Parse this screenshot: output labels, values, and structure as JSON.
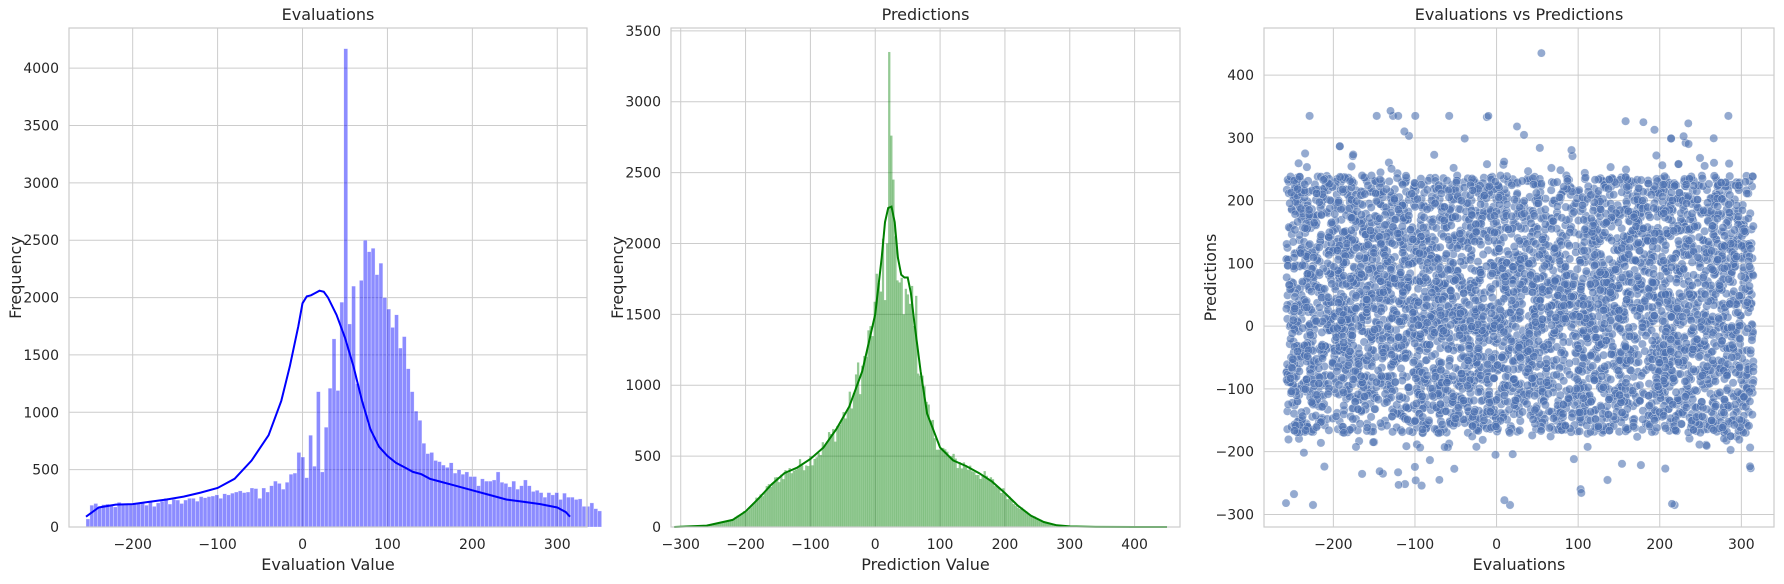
{
  "chart_data": [
    {
      "type": "histogram",
      "title": "Evaluations",
      "xlabel": "Evaluation Value",
      "ylabel": "Frequency",
      "xlim": [
        -275,
        335
      ],
      "ylim": [
        0,
        4350
      ],
      "xticks": [
        -200,
        -100,
        0,
        100,
        200,
        300
      ],
      "yticks": [
        0,
        500,
        1000,
        1500,
        2000,
        2500,
        3000,
        3500,
        4000
      ],
      "grid": true,
      "color": "#0000ff",
      "bins": {
        "start": -255,
        "width": 4.6
      },
      "counts": [
        70,
        190,
        205,
        175,
        195,
        200,
        190,
        175,
        215,
        205,
        200,
        195,
        210,
        205,
        215,
        190,
        220,
        180,
        210,
        225,
        250,
        200,
        240,
        235,
        205,
        235,
        250,
        250,
        225,
        265,
        255,
        265,
        270,
        280,
        250,
        290,
        280,
        295,
        305,
        315,
        300,
        305,
        340,
        335,
        250,
        340,
        305,
        360,
        400,
        380,
        330,
        390,
        460,
        470,
        650,
        610,
        430,
        800,
        530,
        1180,
        480,
        870,
        1210,
        1640,
        1190,
        1960,
        4170,
        1770,
        2100,
        1250,
        2150,
        2500,
        2400,
        2430,
        2200,
        2300,
        2000,
        1900,
        1740,
        1850,
        1560,
        1660,
        1380,
        1180,
        1010,
        930,
        730,
        640,
        650,
        580,
        570,
        540,
        520,
        560,
        470,
        500,
        460,
        480,
        440,
        440,
        360,
        420,
        400,
        400,
        410,
        480,
        390,
        380,
        350,
        400,
        330,
        360,
        410,
        360,
        310,
        320,
        300,
        260,
        300,
        280,
        300,
        240,
        295,
        260,
        260,
        240,
        245,
        180,
        180,
        210,
        160,
        140
      ],
      "kde": {
        "x": [
          -255,
          -240,
          -220,
          -200,
          -180,
          -160,
          -140,
          -120,
          -100,
          -80,
          -60,
          -40,
          -25,
          -15,
          -5,
          0,
          5,
          10,
          15,
          20,
          25,
          30,
          40,
          50,
          60,
          70,
          80,
          90,
          100,
          110,
          120,
          130,
          140,
          150,
          160,
          180,
          200,
          220,
          240,
          260,
          280,
          300,
          310,
          315
        ],
        "y": [
          90,
          170,
          195,
          200,
          220,
          240,
          265,
          300,
          340,
          420,
          580,
          800,
          1100,
          1400,
          1750,
          1950,
          2010,
          2020,
          2040,
          2060,
          2050,
          2000,
          1850,
          1650,
          1400,
          1100,
          850,
          700,
          620,
          560,
          520,
          480,
          460,
          420,
          400,
          360,
          320,
          280,
          240,
          220,
          200,
          170,
          130,
          90
        ]
      }
    },
    {
      "type": "histogram",
      "title": "Predictions",
      "xlabel": "Prediction Value",
      "ylabel": "Frequency",
      "xlim": [
        -315,
        470
      ],
      "ylim": [
        0,
        3520
      ],
      "xticks": [
        -300,
        -200,
        -100,
        0,
        100,
        200,
        300,
        400
      ],
      "yticks": [
        0,
        500,
        1000,
        1500,
        2000,
        2500,
        3000,
        3500
      ],
      "grid": true,
      "color": "#008000",
      "bins": {
        "start": -165,
        "width": 3.2
      },
      "spikes": [
        {
          "x": 22,
          "value": 3350
        },
        {
          "x": 25,
          "value": 2760
        },
        {
          "x": 28,
          "value": 2450
        },
        {
          "x": 18,
          "value": 2000
        },
        {
          "x": 31,
          "value": 2050
        },
        {
          "x": 50,
          "value": 1640
        },
        {
          "x": 56,
          "value": 1700
        },
        {
          "x": 62,
          "value": 1630
        },
        {
          "x": 44,
          "value": 1500
        },
        {
          "x": -25,
          "value": 1160
        },
        {
          "x": 10,
          "value": 1660
        },
        {
          "x": 14,
          "value": 1600
        }
      ],
      "kde": {
        "x": [
          -310,
          -260,
          -220,
          -200,
          -180,
          -160,
          -140,
          -120,
          -100,
          -80,
          -60,
          -40,
          -20,
          0,
          10,
          15,
          20,
          25,
          30,
          35,
          40,
          45,
          50,
          55,
          60,
          70,
          80,
          100,
          120,
          140,
          160,
          180,
          200,
          220,
          240,
          260,
          280,
          300,
          340,
          400,
          450
        ],
        "y": [
          0,
          10,
          50,
          110,
          200,
          300,
          380,
          420,
          480,
          560,
          690,
          850,
          1100,
          1500,
          1900,
          2150,
          2250,
          2260,
          2150,
          1900,
          1780,
          1760,
          1760,
          1650,
          1450,
          1100,
          800,
          560,
          470,
          430,
          380,
          320,
          240,
          150,
          80,
          35,
          12,
          4,
          1,
          0,
          0
        ]
      }
    },
    {
      "type": "scatter",
      "title": "Evaluations vs Predictions",
      "xlabel": "Evaluations",
      "ylabel": "Predictions",
      "xlim": [
        -285,
        340
      ],
      "ylim": [
        -320,
        475
      ],
      "xticks": [
        -200,
        -100,
        0,
        100,
        200,
        300
      ],
      "yticks": [
        -300,
        -200,
        -100,
        0,
        100,
        200,
        300,
        400
      ],
      "grid": true,
      "color": "#4c72b0",
      "x_range": [
        -258,
        315
      ],
      "y_range": [
        -285,
        435
      ]
    }
  ]
}
